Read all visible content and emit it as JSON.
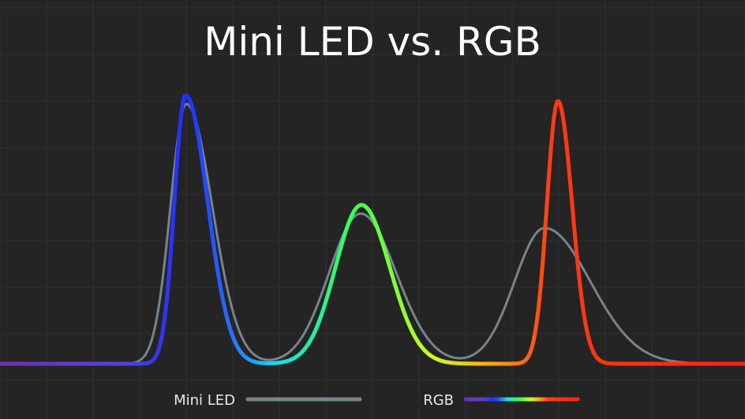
{
  "chart_data": {
    "type": "line",
    "title": "Mini LED vs. RGB",
    "xlabel": "",
    "ylabel": "",
    "grid": true,
    "legend_placement": "bottom-center",
    "xlim": [
      0,
      944
    ],
    "ylim": [
      0,
      1
    ],
    "colors": {
      "background": "#242424",
      "grid": "#2f2f2f",
      "title": "#ffffff",
      "legend_text": "#e8e8e8",
      "mini_led": "#75858a",
      "rgb_gradient": [
        {
          "offset": 0.0,
          "color": "#6b34b0"
        },
        {
          "offset": 0.16,
          "color": "#5a3ed8"
        },
        {
          "offset": 0.25,
          "color": "#1e30ff"
        },
        {
          "offset": 0.31,
          "color": "#2a6cff"
        },
        {
          "offset": 0.37,
          "color": "#14e0e6"
        },
        {
          "offset": 0.48,
          "color": "#3cff4d"
        },
        {
          "offset": 0.58,
          "color": "#c8ff20"
        },
        {
          "offset": 0.65,
          "color": "#ffb014"
        },
        {
          "offset": 0.74,
          "color": "#ff3b14"
        },
        {
          "offset": 1.0,
          "color": "#ff2212"
        }
      ]
    },
    "series": [
      {
        "name": "Mini LED",
        "peaks": [
          {
            "x": 236,
            "height": 0.9,
            "width_left": 20,
            "width_right": 33
          },
          {
            "x": 457,
            "height": 0.52,
            "width_left": 40,
            "width_right": 45
          },
          {
            "x": 690,
            "height": 0.47,
            "width_left": 38,
            "width_right": 58
          }
        ]
      },
      {
        "name": "RGB",
        "peaks": [
          {
            "x": 235,
            "height": 0.93,
            "width_left": 14,
            "width_right": 28
          },
          {
            "x": 458,
            "height": 0.55,
            "width_left": 33,
            "width_right": 36
          },
          {
            "x": 707,
            "height": 0.91,
            "width_left": 14,
            "width_right": 18
          }
        ]
      }
    ]
  },
  "legend": {
    "items": [
      {
        "label": "Mini LED"
      },
      {
        "label": "RGB"
      }
    ]
  }
}
